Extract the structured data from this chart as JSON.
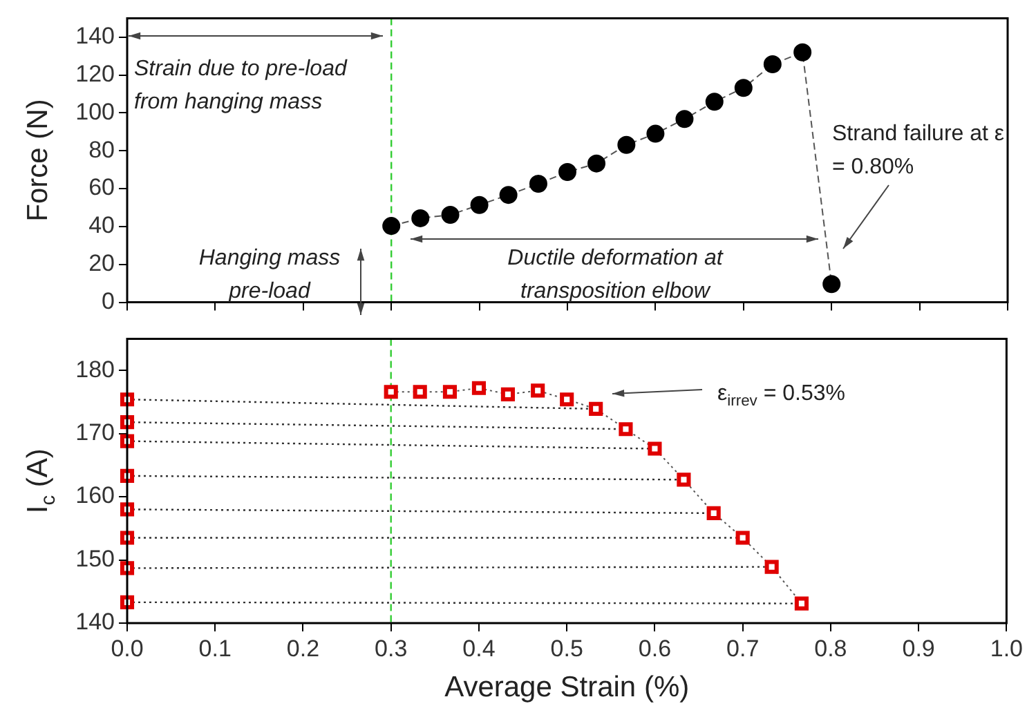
{
  "chart_data": [
    {
      "type": "line",
      "ylabel": "Force (N)",
      "xlim": [
        0,
        1
      ],
      "xticks": [
        {
          "value": 0,
          "label": null
        },
        {
          "value": 0.1,
          "label": null
        },
        {
          "value": 0.2,
          "label": null
        },
        {
          "value": 0.3,
          "label": null
        },
        {
          "value": 0.4,
          "label": null
        },
        {
          "value": 0.5,
          "label": null
        },
        {
          "value": 0.6,
          "label": null
        },
        {
          "value": 0.7,
          "label": null
        },
        {
          "value": 0.8,
          "label": null
        },
        {
          "value": 0.9,
          "label": null
        },
        {
          "value": 1,
          "label": null
        }
      ],
      "ylim": [
        0,
        150
      ],
      "yticks": [
        0,
        20,
        40,
        60,
        80,
        100,
        120,
        140
      ],
      "tick_labels": "y",
      "grid": false,
      "legend": false,
      "marker": "circle",
      "line_style": "dashed",
      "series": [
        {
          "color": "#000000",
          "x": [
            0.3,
            0.333,
            0.367,
            0.4,
            0.433,
            0.467,
            0.5,
            0.533,
            0.567,
            0.6,
            0.633,
            0.667,
            0.7,
            0.733,
            0.767,
            0.8
          ],
          "values": [
            40.3,
            44.4,
            46.2,
            51.4,
            56.7,
            62.6,
            68.8,
            73.3,
            83.1,
            89,
            96.8,
            105.9,
            113.2,
            125.7,
            132,
            9.6
          ]
        }
      ],
      "ref_lines": [
        {
          "axis": "x",
          "value": 0.3,
          "color": "#33cc33",
          "line_style": "dashed"
        }
      ],
      "annotations": [
        "Strain due to pre-load from hanging mass",
        "Hanging mass pre-load",
        "Ductile deformation at transposition elbow",
        "Strand failure at ε = 0.80%"
      ]
    },
    {
      "type": "line",
      "xlabel": "Average Strain (%)",
      "ylabel": "I$_{c}$ (A)",
      "xlim": [
        0,
        1
      ],
      "xticks": [
        {
          "value": 0,
          "label": "0.0"
        },
        {
          "value": 0.1,
          "label": "0.1"
        },
        {
          "value": 0.2,
          "label": "0.2"
        },
        {
          "value": 0.3,
          "label": "0.3"
        },
        {
          "value": 0.4,
          "label": "0.4"
        },
        {
          "value": 0.5,
          "label": "0.5"
        },
        {
          "value": 0.6,
          "label": "0.6"
        },
        {
          "value": 0.7,
          "label": "0.7"
        },
        {
          "value": 0.8,
          "label": "0.8"
        },
        {
          "value": 0.9,
          "label": "0.9"
        },
        {
          "value": 1,
          "label": "1.0"
        }
      ],
      "ylim": [
        140,
        185
      ],
      "yticks": [
        140,
        150,
        160,
        170,
        180
      ],
      "grid": false,
      "legend": false,
      "marker": "square",
      "line_style": "dotted",
      "series": [
        {
          "color": "#e00000",
          "x": [
            0.3,
            0.333,
            0.367,
            0.4,
            0.433,
            0.467,
            0.5,
            0.533,
            0.567,
            0.6,
            0.633,
            0.667,
            0.7,
            0.733,
            0.767
          ],
          "values": [
            176.6,
            176.6,
            176.6,
            177.2,
            176.2,
            176.8,
            175.4,
            173.9,
            170.7,
            167.6,
            162.7,
            157.4,
            153.5,
            148.9,
            143.1
          ]
        },
        {
          "type": "scatter",
          "color": "#e00000",
          "x": [
            0,
            0,
            0,
            0,
            0,
            0,
            0,
            0
          ],
          "values": [
            175.4,
            171.8,
            168.8,
            163.3,
            158,
            153.5,
            148.7,
            143.3
          ]
        },
        {
          "color": "#333333",
          "marker": "none",
          "x": [
            0,
            0.533
          ],
          "values": [
            175.4,
            173.9
          ]
        },
        {
          "color": "#333333",
          "marker": "none",
          "x": [
            0,
            0.567
          ],
          "values": [
            171.8,
            170.7
          ]
        },
        {
          "color": "#333333",
          "marker": "none",
          "x": [
            0,
            0.6
          ],
          "values": [
            168.8,
            167.6
          ]
        },
        {
          "color": "#333333",
          "marker": "none",
          "x": [
            0,
            0.633
          ],
          "values": [
            163.3,
            162.7
          ]
        },
        {
          "color": "#333333",
          "marker": "none",
          "x": [
            0,
            0.667
          ],
          "values": [
            158,
            157.4
          ]
        },
        {
          "color": "#333333",
          "marker": "none",
          "x": [
            0,
            0.7
          ],
          "values": [
            153.5,
            153.5
          ]
        },
        {
          "color": "#333333",
          "marker": "none",
          "x": [
            0,
            0.733
          ],
          "values": [
            148.7,
            148.9
          ]
        },
        {
          "color": "#333333",
          "marker": "none",
          "x": [
            0,
            0.767
          ],
          "values": [
            143.3,
            143.1
          ]
        }
      ],
      "ref_lines": [
        {
          "axis": "x",
          "value": 0.3,
          "color": "#33cc33",
          "line_style": "dashed"
        }
      ],
      "annotations": [
        "ε$_{irrev}$ = 0.53%"
      ]
    }
  ]
}
